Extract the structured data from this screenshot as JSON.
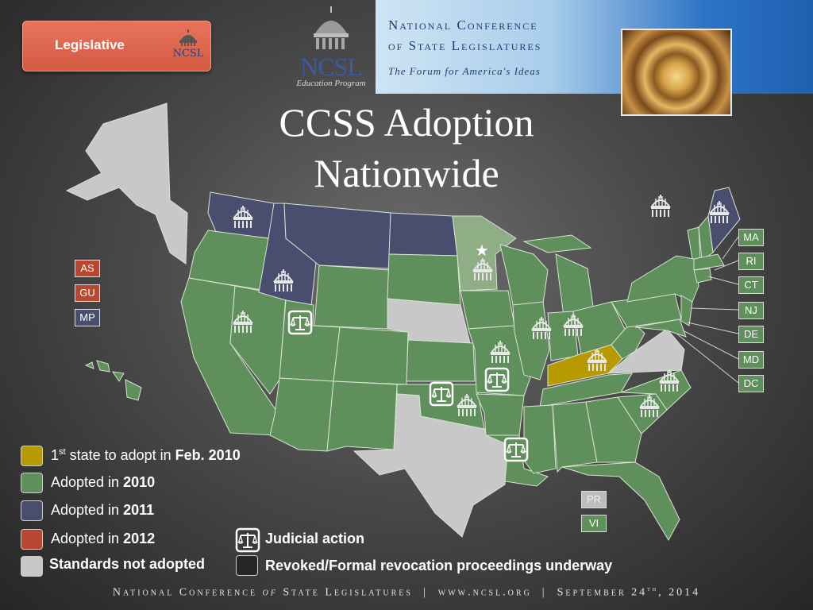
{
  "badge": {
    "label": "Legislative",
    "mini_logo": "NCSL"
  },
  "logo": {
    "name": "NCSL",
    "subtitle": "Education Program"
  },
  "banner": {
    "line1": "National Conference",
    "line2": "of State Legislatures",
    "tagline": "The Forum for America's Ideas"
  },
  "title_line1": "CCSS Adoption",
  "title_line2": "Nationwide",
  "territories": [
    "AS",
    "GU",
    "MP",
    "PR",
    "VI"
  ],
  "callouts": [
    "MA",
    "RI",
    "CT",
    "NJ",
    "DE",
    "MD",
    "DC"
  ],
  "legend": {
    "first": {
      "pre": "1",
      "sup": "st",
      "text": " state to adopt in ",
      "bold": "Feb. 2010",
      "color": "#b79a00"
    },
    "y2010": {
      "text": "Adopted in ",
      "bold": "2010",
      "color": "#5f8f5a"
    },
    "y2011": {
      "text": "Adopted in ",
      "bold": "2011",
      "color": "#4a4e6e"
    },
    "y2012": {
      "text": "Adopted in ",
      "bold": "2012",
      "color": "#b94631"
    },
    "notadopted": {
      "text": "Standards not adopted",
      "color": "#c8c8c8"
    },
    "judicial": {
      "text": "Judicial action"
    },
    "revoked": {
      "text": "Revoked/Formal revocation proceedings underway",
      "color": "#262626"
    }
  },
  "footer": {
    "org_pre": "National Conference ",
    "org_of": "of",
    "org_post": " State Legislatures",
    "site": "www.ncsl.org",
    "date_pre": "September 24",
    "date_sup": "th",
    "date_post": ", 2014"
  },
  "colors": {
    "adopted_2010": "#5f8f5a",
    "adopted_2011": "#4a4e6e",
    "first_state": "#b79a00",
    "not_adopted": "#c8c8c8",
    "minnesota_partial": "#8fae86"
  }
}
